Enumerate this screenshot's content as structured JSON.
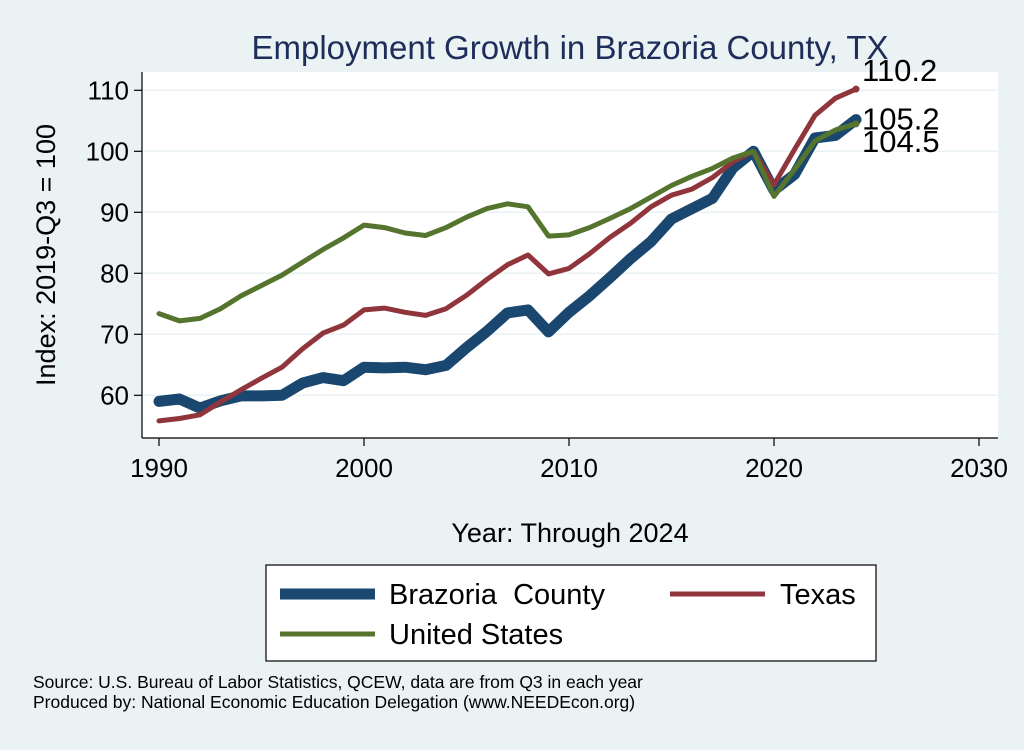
{
  "chart_data": {
    "type": "line",
    "title": "Employment Growth in Brazoria County, TX",
    "xlabel": "Year: Through 2024",
    "ylabel": "Index: 2019-Q3 = 100",
    "xlim": [
      1990,
      2030
    ],
    "ylim": [
      53,
      113
    ],
    "xticks": [
      1990,
      2000,
      2010,
      2020,
      2030
    ],
    "yticks": [
      60,
      70,
      80,
      90,
      100,
      110
    ],
    "grid": true,
    "legend_position": "bottom",
    "x": [
      1990,
      1991,
      1992,
      1993,
      1994,
      1995,
      1996,
      1997,
      1998,
      1999,
      2000,
      2001,
      2002,
      2003,
      2004,
      2005,
      2006,
      2007,
      2008,
      2009,
      2010,
      2011,
      2012,
      2013,
      2014,
      2015,
      2016,
      2017,
      2018,
      2019,
      2020,
      2021,
      2022,
      2023,
      2024
    ],
    "series": [
      {
        "name": "Brazoria  County",
        "color": "#1a476f",
        "values": [
          59.0,
          59.4,
          57.9,
          59.1,
          59.9,
          59.9,
          60.0,
          62.0,
          62.9,
          62.4,
          64.6,
          64.5,
          64.6,
          64.2,
          64.9,
          67.8,
          70.5,
          73.5,
          74.0,
          70.4,
          73.6,
          76.3,
          79.3,
          82.4,
          85.2,
          88.9,
          90.6,
          92.3,
          97.3,
          100.0,
          93.6,
          96.2,
          102.2,
          102.6,
          105.2
        ]
      },
      {
        "name": "Texas",
        "color": "#90353b",
        "values": [
          55.8,
          56.2,
          56.8,
          58.9,
          60.9,
          62.8,
          64.6,
          67.6,
          70.2,
          71.5,
          74.0,
          74.3,
          73.6,
          73.1,
          74.2,
          76.4,
          79.0,
          81.4,
          83.0,
          79.9,
          80.8,
          83.2,
          85.9,
          88.2,
          90.9,
          92.8,
          93.8,
          95.7,
          98.3,
          100.0,
          94.5,
          100.3,
          105.9,
          108.7,
          110.2
        ]
      },
      {
        "name": "United States",
        "color": "#55752f",
        "values": [
          73.4,
          72.2,
          72.6,
          74.2,
          76.3,
          78.0,
          79.7,
          81.8,
          83.9,
          85.8,
          87.9,
          87.5,
          86.6,
          86.2,
          87.5,
          89.2,
          90.6,
          91.4,
          90.9,
          86.1,
          86.3,
          87.5,
          89.0,
          90.6,
          92.5,
          94.4,
          95.9,
          97.2,
          98.9,
          100.0,
          92.6,
          97.0,
          101.7,
          103.5,
          104.5
        ]
      }
    ],
    "end_labels": [
      "110.2",
      "105.2",
      "104.5"
    ],
    "footnote": {
      "source": "Source: U.S. Bureau of Labor Statistics, QCEW, data are from Q3 in each year",
      "produced": "Produced by: National Economic Education Delegation (www.NEEDEcon.org)"
    }
  }
}
